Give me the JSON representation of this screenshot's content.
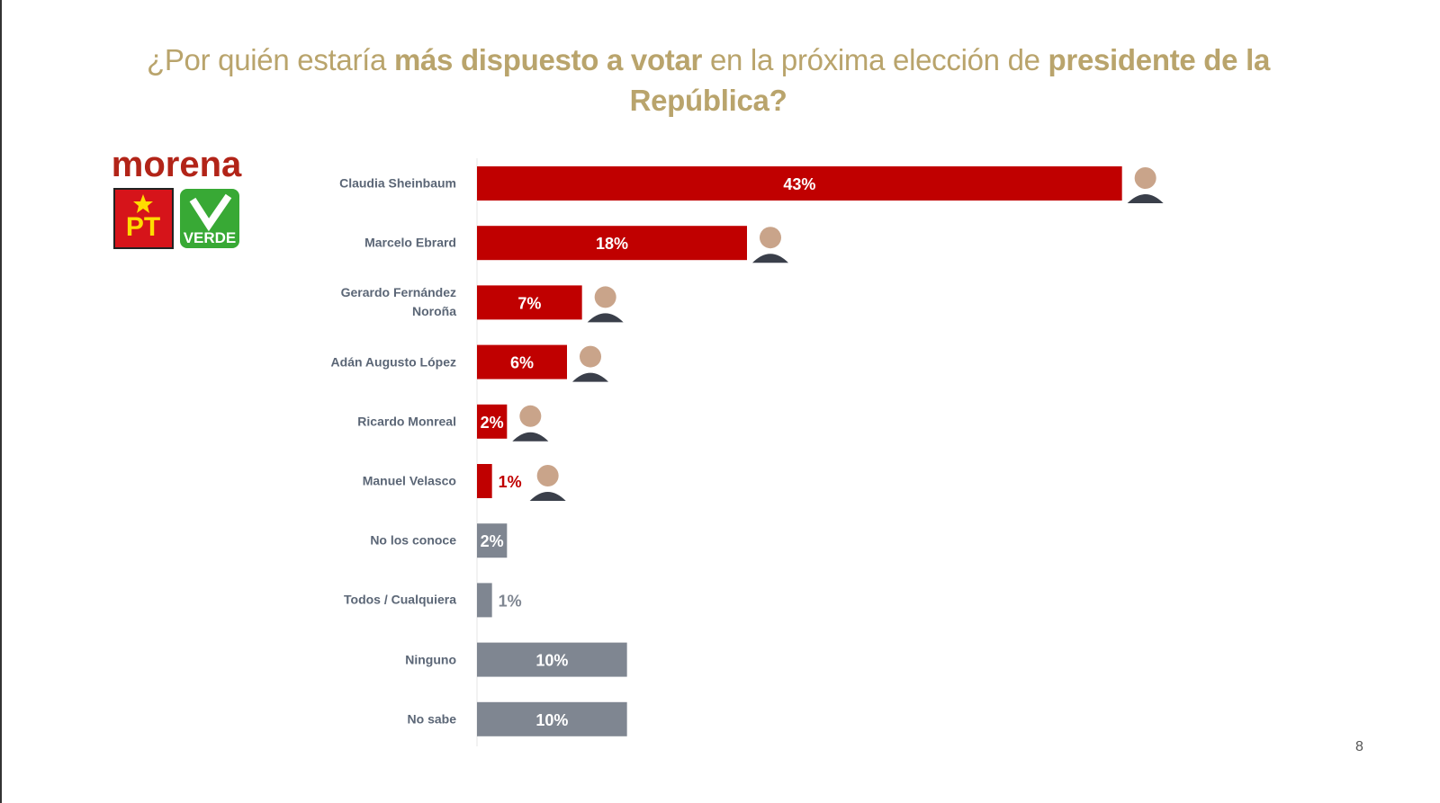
{
  "chart_data": {
    "type": "bar",
    "orientation": "horizontal",
    "title_runs": [
      {
        "text": "¿Por quién estaría ",
        "bold": false
      },
      {
        "text": "más dispuesto a votar",
        "bold": true
      },
      {
        "text": " en la próxima elección de ",
        "bold": false
      },
      {
        "text": "presidente de la República?",
        "bold": true
      }
    ],
    "categories": [
      "Claudia Sheinbaum",
      "Marcelo Ebrard",
      "Gerardo Fernández Noroña",
      "Adán Augusto López",
      "Ricardo Monreal",
      "Manuel Velasco",
      "No los conoce",
      "Todos / Cualquiera",
      "Ninguno",
      "No sabe"
    ],
    "values": [
      43,
      18,
      7,
      6,
      2,
      1,
      2,
      1,
      10,
      10
    ],
    "value_labels": [
      "43%",
      "18%",
      "7%",
      "6%",
      "2%",
      "1%",
      "2%",
      "1%",
      "10%",
      "10%"
    ],
    "colors": [
      "#c00000",
      "#c00000",
      "#c00000",
      "#c00000",
      "#c00000",
      "#c00000",
      "#7f8691",
      "#7f8691",
      "#7f8691",
      "#7f8691"
    ],
    "xlim": [
      0,
      60
    ],
    "logos": [
      "morena",
      "PT",
      "VERDE"
    ],
    "page_number": 8
  }
}
